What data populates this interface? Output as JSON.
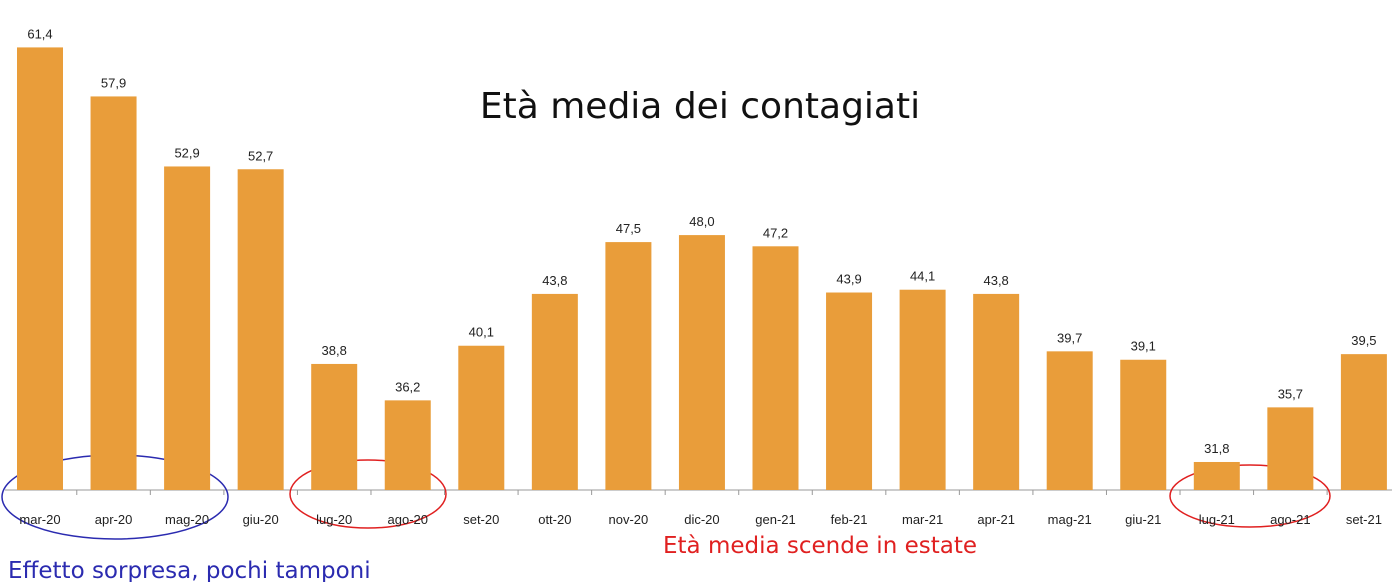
{
  "chart_data": {
    "type": "bar",
    "title": "Età media dei contagiati",
    "categories": [
      "mar-20",
      "apr-20",
      "mag-20",
      "giu-20",
      "lug-20",
      "ago-20",
      "set-20",
      "ott-20",
      "nov-20",
      "dic-20",
      "gen-21",
      "feb-21",
      "mar-21",
      "apr-21",
      "mag-21",
      "giu-21",
      "lug-21",
      "ago-21",
      "set-21"
    ],
    "values": [
      61.4,
      57.9,
      52.9,
      52.7,
      38.8,
      36.2,
      40.1,
      43.8,
      47.5,
      48.0,
      47.2,
      43.9,
      44.1,
      43.8,
      39.7,
      39.1,
      31.8,
      35.7,
      39.5
    ],
    "value_labels": [
      "61,4",
      "57,9",
      "52,9",
      "52,7",
      "38,8",
      "36,2",
      "40,1",
      "43,8",
      "47,5",
      "48,0",
      "47,2",
      "43,9",
      "44,1",
      "43,8",
      "39,7",
      "39,1",
      "31,8",
      "35,7",
      "39,5"
    ],
    "color": "#e99d3a",
    "ylim": [
      29.8,
      63
    ],
    "annotations": [
      "Effetto sorpresa, pochi tamponi",
      "Età media scende in estate"
    ]
  }
}
